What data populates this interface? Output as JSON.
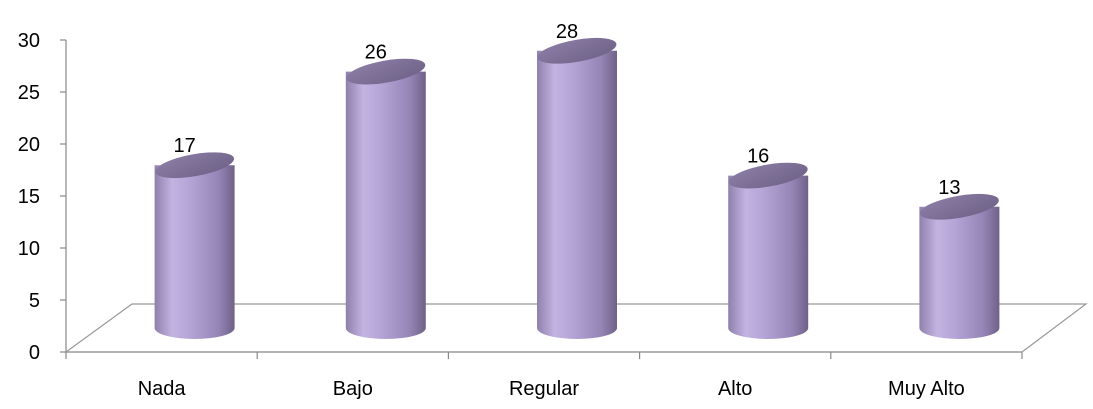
{
  "chart_data": {
    "type": "bar",
    "style": "3d-cylinder",
    "categories": [
      "Nada",
      "Bajo",
      "Regular",
      "Alto",
      "Muy Alto"
    ],
    "values": [
      17,
      26,
      28,
      16,
      13
    ],
    "data_labels": [
      "17",
      "26",
      "28",
      "16",
      "13"
    ],
    "ylim": [
      0,
      30
    ],
    "yticks": [
      "0",
      "5",
      "10",
      "15",
      "20",
      "25",
      "30"
    ],
    "grid": false,
    "legend": "none",
    "bar_color": "#b7a7d8",
    "bar_shadow_color": "#7d6e99"
  }
}
